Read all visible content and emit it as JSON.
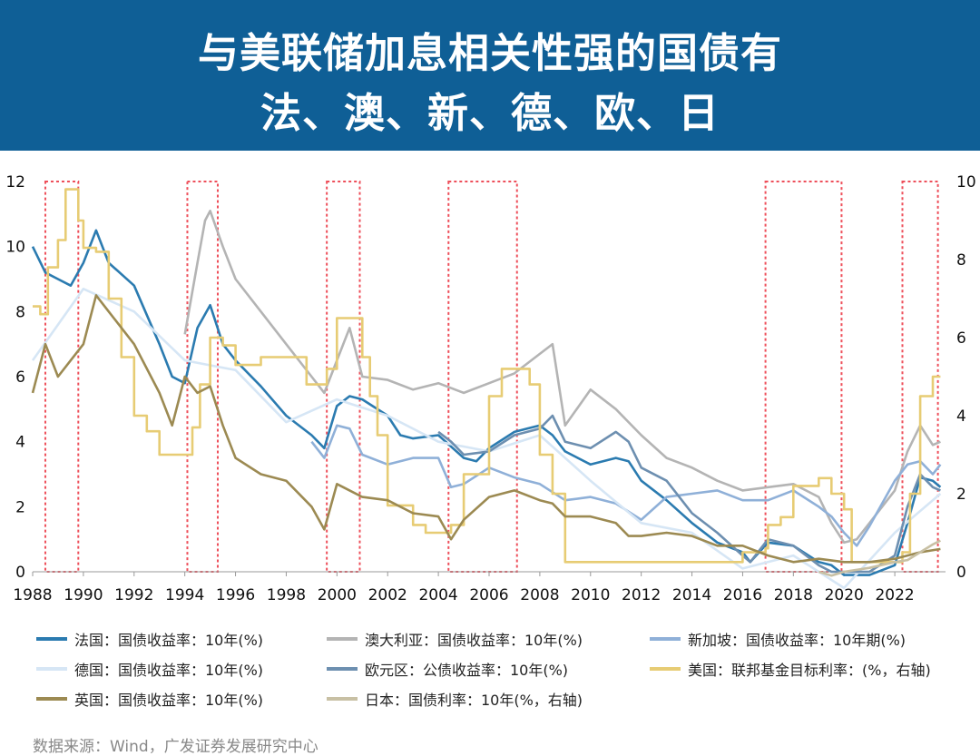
{
  "banner": {
    "title_line1": "与美联储加息相关性强的国债有",
    "title_line2": "法、澳、新、德、欧、日"
  },
  "source": "数据来源：Wind，广发证券发展研究中心",
  "chart_data": {
    "type": "line",
    "y_left_ticks": [
      "12",
      "10",
      "8",
      "6",
      "4",
      "2",
      "0"
    ],
    "y_right_ticks": [
      "10",
      "8",
      "6",
      "4",
      "2",
      "0"
    ],
    "x_ticks": [
      "1988",
      "1990",
      "1992",
      "1994",
      "1996",
      "1998",
      "2000",
      "2002",
      "2004",
      "2006",
      "2008",
      "2010",
      "2012",
      "2014",
      "2016",
      "2018",
      "2020",
      "2022"
    ],
    "ylim_left": [
      0,
      12
    ],
    "ylim_right": [
      0,
      10
    ],
    "xlim": [
      1988,
      2024
    ],
    "hike_periods": [
      [
        1988.5,
        1989.8
      ],
      [
        1994.1,
        1995.3
      ],
      [
        1999.6,
        2000.9
      ],
      [
        2004.4,
        2007.1
      ],
      [
        2016.9,
        2019.9
      ],
      [
        2022.3,
        2023.7
      ]
    ],
    "series": [
      {
        "name": "法国：国债收益率：10年(%)",
        "color": "#2b7bb0",
        "axis": "left",
        "x": [
          1988,
          1988.5,
          1989,
          1989.5,
          1990,
          1990.5,
          1991,
          1992,
          1993,
          1993.5,
          1994,
          1994.5,
          1995,
          1995.5,
          1996,
          1997,
          1998,
          1999,
          1999.5,
          2000,
          2000.5,
          2001,
          2002,
          2002.5,
          2003,
          2004,
          2005,
          2005.5,
          2006,
          2007,
          2007.5,
          2008,
          2008.5,
          2009,
          2010,
          2011,
          2011.5,
          2012,
          2013,
          2014,
          2015,
          2016,
          2016.3,
          2017,
          2018,
          2019,
          2019.5,
          2020,
          2021,
          2022,
          2022.5,
          2023,
          2023.5,
          2023.8
        ],
        "y": [
          10,
          9.2,
          9,
          8.8,
          9.5,
          10.5,
          9.5,
          8.8,
          7,
          6,
          5.8,
          7.5,
          8.2,
          7,
          6.5,
          5.7,
          4.8,
          4.2,
          3.8,
          5.1,
          5.4,
          5.3,
          4.8,
          4.2,
          4.1,
          4.2,
          3.5,
          3.4,
          3.8,
          4.3,
          4.4,
          4.5,
          4.2,
          3.7,
          3.3,
          3.5,
          3.4,
          2.8,
          2.2,
          1.5,
          0.9,
          0.6,
          0.3,
          0.9,
          0.8,
          0.3,
          0.2,
          -0.1,
          -0.1,
          0.2,
          1.5,
          2.9,
          2.8,
          2.6
        ]
      },
      {
        "name": "澳大利亚：国债收益率：10年(%)",
        "color": "#b4b4b4",
        "axis": "left",
        "x": [
          1994,
          1994.5,
          1994.8,
          1995,
          1995.5,
          1996,
          1997,
          1998,
          1999,
          1999.5,
          2000,
          2000.5,
          2001,
          2002,
          2003,
          2004,
          2005,
          2006,
          2007,
          2008,
          2008.5,
          2009,
          2010,
          2011,
          2012,
          2013,
          2014,
          2015,
          2016,
          2017,
          2018,
          2019,
          2019.5,
          2020,
          2020.5,
          2021,
          2022,
          2022.5,
          2023,
          2023.5,
          2023.8
        ],
        "y": [
          7.3,
          9.5,
          10.8,
          11.1,
          10,
          9,
          8,
          7,
          6,
          5.5,
          6.5,
          7.5,
          6,
          5.9,
          5.6,
          5.8,
          5.5,
          5.8,
          6.1,
          6.7,
          7,
          4.5,
          5.6,
          5,
          4.2,
          3.5,
          3.2,
          2.8,
          2.5,
          2.6,
          2.7,
          2.3,
          1.5,
          0.9,
          1,
          1.5,
          2.5,
          3.7,
          4.5,
          3.9,
          4
        ]
      },
      {
        "name": "新加坡：国债收益率：10年期(%)",
        "color": "#8fb0d8",
        "axis": "left",
        "x": [
          1999,
          1999.5,
          2000,
          2000.5,
          2001,
          2002,
          2003,
          2004,
          2004.5,
          2005,
          2006,
          2007,
          2008,
          2009,
          2010,
          2011,
          2012,
          2013,
          2014,
          2015,
          2016,
          2017,
          2018,
          2019,
          2019.5,
          2020,
          2020.5,
          2021,
          2022,
          2022.5,
          2023,
          2023.5,
          2023.8
        ],
        "y": [
          4,
          3.5,
          4.5,
          4.4,
          3.6,
          3.3,
          3.5,
          3.5,
          2.6,
          2.7,
          3.2,
          2.9,
          2.7,
          2.2,
          2.3,
          2.1,
          1.6,
          2.3,
          2.4,
          2.5,
          2.2,
          2.2,
          2.5,
          2,
          1.7,
          1.2,
          0.8,
          1.4,
          2.8,
          3.3,
          3.4,
          3,
          3.3
        ]
      },
      {
        "name": "德国：国债收益率：10年(%)",
        "color": "#d6e6f5",
        "axis": "left",
        "x": [
          1988,
          1990,
          1992,
          1994,
          1996,
          1998,
          2000,
          2002,
          2004,
          2006,
          2008,
          2010,
          2012,
          2014,
          2016,
          2018,
          2020,
          2022,
          2023.8
        ],
        "y": [
          6.5,
          8.7,
          8,
          6.5,
          6.2,
          4.6,
          5.3,
          4.8,
          4,
          3.7,
          4.2,
          2.8,
          1.5,
          1.2,
          0.1,
          0.5,
          -0.5,
          1.2,
          2.4
        ]
      },
      {
        "name": "欧元区：公债收益率：10年(%)",
        "color": "#6d8fb0",
        "axis": "left",
        "x": [
          2004,
          2004.5,
          2005,
          2006,
          2007,
          2008,
          2008.5,
          2009,
          2010,
          2011,
          2011.5,
          2012,
          2013,
          2014,
          2015,
          2016,
          2016.3,
          2017,
          2018,
          2019,
          2019.5,
          2020,
          2021,
          2022,
          2022.5,
          2023,
          2023.5,
          2023.8
        ],
        "y": [
          4.3,
          4,
          3.6,
          3.7,
          4.2,
          4.4,
          4.8,
          4,
          3.8,
          4.3,
          4,
          3.2,
          2.8,
          1.8,
          1.2,
          0.5,
          0.3,
          1,
          0.8,
          0.2,
          0,
          0,
          0,
          0.5,
          2,
          3,
          2.6,
          2.5
        ]
      },
      {
        "name": "美国：联邦基金目标利率：(%，右轴)",
        "color": "#e7cc74",
        "axis": "right",
        "x": [
          1988,
          1988.3,
          1988.6,
          1989,
          1989.3,
          1989.8,
          1990,
          1990.5,
          1991,
          1991.5,
          1992,
          1992.5,
          1993,
          1994,
          1994.3,
          1994.6,
          1995,
          1995.5,
          1996,
          1997,
          1998,
          1998.8,
          1999,
          1999.6,
          2000,
          2000.5,
          2001,
          2001.3,
          2001.6,
          2002,
          2003,
          2003.5,
          2004,
          2004.5,
          2005,
          2006,
          2006.5,
          2007,
          2007.6,
          2008,
          2008.5,
          2009,
          2015,
          2016,
          2016.9,
          2017,
          2017.5,
          2018,
          2019,
          2019.5,
          2020,
          2020.3,
          2022,
          2022.3,
          2022.6,
          2023,
          2023.5,
          2023.8
        ],
        "y": [
          6.8,
          6.6,
          7.8,
          8.5,
          9.8,
          9,
          8.3,
          8.2,
          7,
          5.5,
          4,
          3.6,
          3,
          3,
          3.7,
          4.8,
          6,
          5.8,
          5.3,
          5.5,
          5.5,
          4.8,
          4.8,
          5.2,
          6.5,
          6.5,
          5.5,
          4.5,
          3.5,
          1.7,
          1.2,
          1,
          1,
          1.2,
          2.5,
          4.5,
          5.2,
          5.2,
          4.8,
          3,
          2,
          0.25,
          0.25,
          0.5,
          0.6,
          1.2,
          1.4,
          2.2,
          2.4,
          2,
          1.6,
          0.25,
          0.25,
          0.5,
          2,
          4.5,
          5,
          5
        ]
      },
      {
        "name": "英国：国债收益率：10年(%)",
        "color": "#9c8a52",
        "axis": "left",
        "x": [
          1988,
          1988.5,
          1989,
          1989.5,
          1990,
          1990.5,
          1991,
          1992,
          1993,
          1993.5,
          1994,
          1994.5,
          1995,
          1995.5,
          1996,
          1997,
          1998,
          1999,
          1999.5,
          2000,
          2001,
          2002,
          2003,
          2004,
          2004.5,
          2005,
          2006,
          2007,
          2008,
          2008.5,
          2009,
          2010,
          2011,
          2011.5,
          2012,
          2013,
          2014,
          2015,
          2016,
          2017,
          2018,
          2019,
          2020,
          2021,
          2022,
          2023,
          2023.8
        ],
        "y": [
          5.5,
          7,
          6,
          6.5,
          7,
          8.5,
          8,
          7,
          5.5,
          4.5,
          6,
          5.5,
          5.7,
          4.5,
          3.5,
          3,
          2.8,
          2,
          1.3,
          2.7,
          2.3,
          2.2,
          1.8,
          1.7,
          1,
          1.6,
          2.3,
          2.5,
          2.2,
          2.1,
          1.7,
          1.7,
          1.5,
          1.1,
          1.1,
          1.2,
          1.1,
          0.8,
          0.8,
          0.5,
          0.3,
          0.4,
          0.3,
          0.3,
          0.4,
          0.6,
          0.7
        ]
      },
      {
        "name": "日本：国债利率：10年(%，右轴)",
        "color": "#c8c0a4",
        "axis": "right",
        "x": [
          2019,
          2019.5,
          2020,
          2021,
          2022,
          2022.5,
          2023,
          2023.5,
          2023.8
        ],
        "y": [
          0,
          -0.1,
          0,
          0.1,
          0.25,
          0.3,
          0.5,
          0.7,
          0.8
        ]
      }
    ]
  }
}
